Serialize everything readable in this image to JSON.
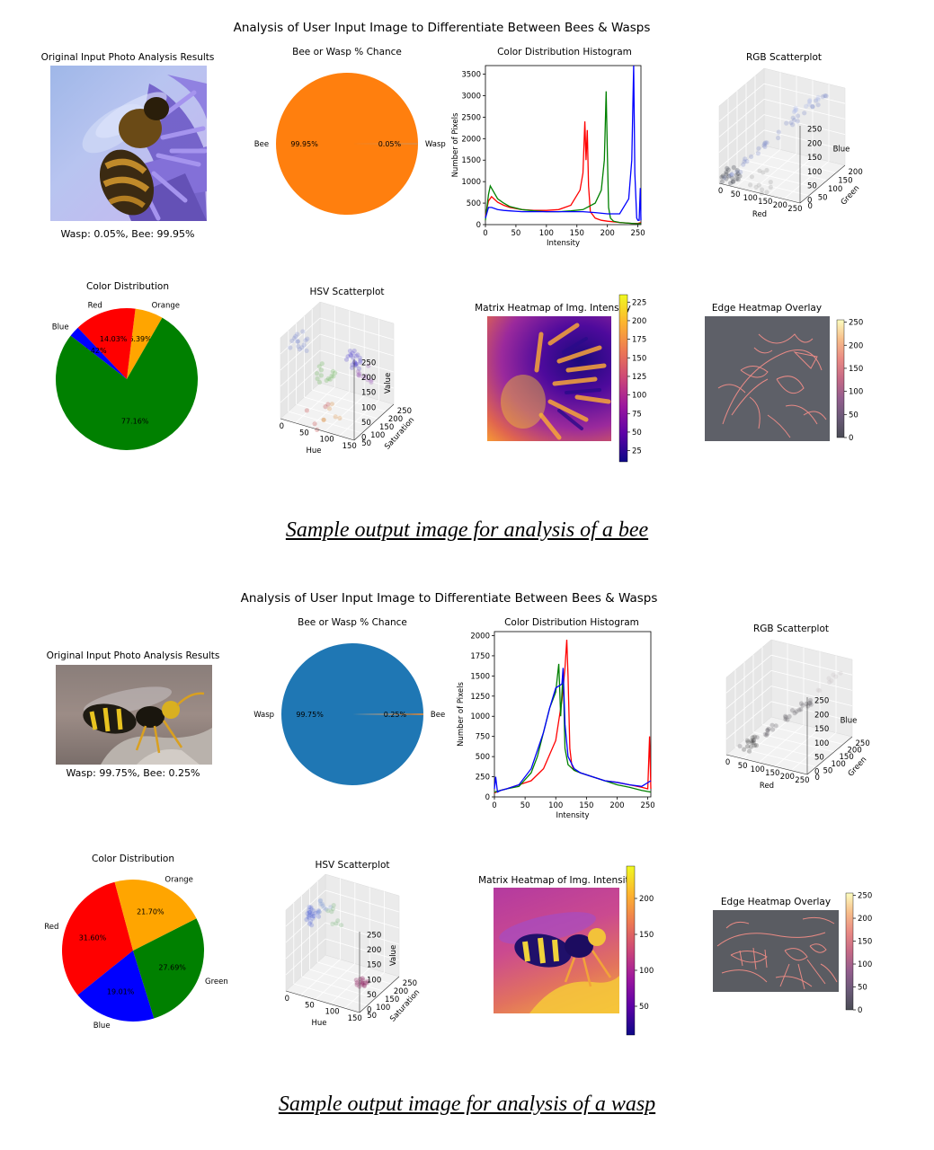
{
  "figures": [
    {
      "suptitle": "Analysis of User Input Image to Differentiate Between Bees & Wasps",
      "photo": {
        "title": "Original Input Photo Analysis Results",
        "result": "Wasp: 0.05%, Bee: 99.95%",
        "subject": "bee"
      },
      "caption": "Sample output image for analysis of a bee"
    },
    {
      "suptitle": "Analysis of User Input Image to Differentiate Between Bees & Wasps",
      "photo": {
        "title": "Original Input Photo Analysis Results",
        "result": "Wasp: 99.75%, Bee: 0.25%",
        "subject": "wasp"
      },
      "caption": "Sample output image for analysis of a wasp"
    }
  ],
  "chart_data": [
    {
      "type": "pie",
      "title": "Bee or Wasp % Chance",
      "labels": [
        "Bee",
        "Wasp"
      ],
      "values": [
        99.95,
        0.05
      ],
      "value_labels": [
        "99.95%",
        "0.05%"
      ],
      "colors": [
        "#ff7f0e",
        "#1f77b4"
      ]
    },
    {
      "type": "line",
      "title": "Color Distribution Histogram",
      "xlabel": "Intensity",
      "ylabel": "Number of Pixels",
      "xlim": [
        0,
        255
      ],
      "ylim": [
        0,
        3700
      ],
      "xticks": [
        0,
        50,
        100,
        150,
        200,
        250
      ],
      "yticks": [
        0,
        500,
        1000,
        1500,
        2000,
        2500,
        3000,
        3500
      ],
      "series": [
        {
          "color": "#ff0000",
          "x": [
            0,
            5,
            10,
            20,
            30,
            40,
            60,
            80,
            100,
            120,
            140,
            155,
            160,
            163,
            165,
            167,
            169,
            172,
            180,
            190,
            200,
            220,
            240,
            250,
            255
          ],
          "y": [
            200,
            550,
            650,
            520,
            450,
            400,
            350,
            330,
            330,
            350,
            450,
            800,
            1200,
            2400,
            1500,
            2200,
            900,
            300,
            150,
            100,
            80,
            50,
            30,
            30,
            50
          ]
        },
        {
          "color": "#008000",
          "x": [
            0,
            5,
            8,
            12,
            20,
            30,
            40,
            60,
            80,
            100,
            120,
            140,
            160,
            180,
            190,
            195,
            198,
            200,
            202,
            205,
            210,
            220,
            240,
            250,
            255
          ],
          "y": [
            100,
            700,
            900,
            800,
            600,
            500,
            420,
            350,
            320,
            300,
            300,
            320,
            350,
            500,
            800,
            1500,
            3100,
            1600,
            400,
            150,
            80,
            50,
            30,
            20,
            30
          ]
        },
        {
          "color": "#0000ff",
          "x": [
            0,
            5,
            10,
            20,
            30,
            40,
            60,
            80,
            100,
            120,
            140,
            160,
            180,
            200,
            220,
            235,
            240,
            243,
            245,
            248,
            250,
            252,
            254,
            255
          ],
          "y": [
            150,
            400,
            400,
            350,
            330,
            320,
            300,
            300,
            300,
            300,
            300,
            300,
            280,
            250,
            250,
            600,
            1500,
            3700,
            1200,
            150,
            100,
            100,
            850,
            100
          ]
        }
      ]
    },
    {
      "type": "scatter",
      "title": "RGB Scatterplot",
      "xlabel": "Red",
      "ylabel": "Green",
      "zlabel": "Blue",
      "xticks": [
        0,
        50,
        100,
        150,
        200,
        250
      ],
      "yticks": [
        0,
        50,
        100,
        150,
        200
      ],
      "zticks": [
        0,
        50,
        100,
        150,
        200,
        250
      ]
    },
    {
      "type": "pie",
      "title": "Color Distribution",
      "labels": [
        "Orange",
        "Red",
        "Blue",
        "Green"
      ],
      "values": [
        6.39,
        14.03,
        2.42,
        77.16
      ],
      "value_labels": [
        "6.39%",
        "14.03%",
        "2.42%",
        "77.16%"
      ],
      "colors": [
        "#ffa500",
        "#ff0000",
        "#0000ff",
        "#008000"
      ]
    },
    {
      "type": "scatter",
      "title": "HSV Scatterplot",
      "xlabel": "Hue",
      "ylabel": "Saturation",
      "zlabel": "Value",
      "xticks": [
        0,
        50,
        100,
        150
      ],
      "yticks": [
        50,
        100,
        150,
        200,
        250
      ],
      "zticks": [
        0,
        50,
        100,
        150,
        200,
        250
      ]
    },
    {
      "type": "heatmap",
      "title": "Matrix Heatmap of Img. Intensity",
      "colorbar_ticks": [
        25,
        50,
        75,
        100,
        125,
        150,
        175,
        200,
        225
      ],
      "colorbar_range": [
        10,
        235
      ]
    },
    {
      "type": "heatmap",
      "title": "Edge Heatmap Overlay",
      "colorbar_ticks": [
        0,
        50,
        100,
        150,
        200,
        250
      ],
      "colorbar_range": [
        0,
        255
      ]
    },
    {
      "type": "pie",
      "title": "Bee or Wasp % Chance",
      "labels": [
        "Wasp",
        "Bee"
      ],
      "values": [
        99.75,
        0.25
      ],
      "value_labels": [
        "99.75%",
        "0.25%"
      ],
      "colors": [
        "#1f77b4",
        "#ff7f0e"
      ]
    },
    {
      "type": "line",
      "title": "Color Distribution Histogram",
      "xlabel": "Intensity",
      "ylabel": "Number of Pixels",
      "xlim": [
        0,
        255
      ],
      "ylim": [
        0,
        2050
      ],
      "xticks": [
        0,
        50,
        100,
        150,
        200,
        250
      ],
      "yticks": [
        0,
        250,
        500,
        750,
        1000,
        1250,
        1500,
        1750,
        2000
      ],
      "series": [
        {
          "color": "#ff0000",
          "x": [
            0,
            10,
            20,
            40,
            60,
            80,
            100,
            110,
            115,
            118,
            120,
            123,
            126,
            130,
            140,
            160,
            180,
            200,
            220,
            240,
            250,
            253,
            255
          ],
          "y": [
            50,
            80,
            100,
            150,
            200,
            350,
            700,
            1200,
            1600,
            1950,
            1500,
            600,
            400,
            330,
            300,
            250,
            200,
            180,
            150,
            120,
            100,
            750,
            100
          ]
        },
        {
          "color": "#008000",
          "x": [
            0,
            10,
            20,
            40,
            60,
            70,
            80,
            90,
            100,
            105,
            108,
            112,
            115,
            120,
            130,
            140,
            160,
            180,
            200,
            220,
            240,
            255
          ],
          "y": [
            60,
            80,
            100,
            130,
            300,
            500,
            800,
            1100,
            1300,
            1650,
            1000,
            1550,
            600,
            400,
            330,
            300,
            250,
            200,
            150,
            120,
            80,
            60
          ]
        },
        {
          "color": "#0000ff",
          "x": [
            0,
            2,
            5,
            10,
            20,
            40,
            60,
            80,
            90,
            100,
            110,
            112,
            115,
            120,
            130,
            140,
            160,
            180,
            200,
            220,
            240,
            255
          ],
          "y": [
            100,
            250,
            60,
            80,
            100,
            150,
            350,
            800,
            1100,
            1350,
            1400,
            1600,
            900,
            500,
            350,
            300,
            250,
            200,
            180,
            150,
            130,
            200
          ]
        }
      ]
    },
    {
      "type": "scatter",
      "title": "RGB Scatterplot",
      "xlabel": "Red",
      "ylabel": "Green",
      "zlabel": "Blue",
      "xticks": [
        0,
        50,
        100,
        150,
        200,
        250
      ],
      "yticks": [
        0,
        50,
        100,
        150,
        200,
        250
      ],
      "zticks": [
        0,
        50,
        100,
        150,
        200,
        250
      ]
    },
    {
      "type": "pie",
      "title": "Color Distribution",
      "labels": [
        "Red",
        "Blue",
        "Green",
        "Orange"
      ],
      "values": [
        31.6,
        19.01,
        27.69,
        21.7
      ],
      "value_labels": [
        "31.60%",
        "19.01%",
        "27.69%",
        "21.70%"
      ],
      "colors": [
        "#ff0000",
        "#0000ff",
        "#008000",
        "#ffa500"
      ]
    },
    {
      "type": "scatter",
      "title": "HSV Scatterplot",
      "xlabel": "Hue",
      "ylabel": "Saturation",
      "zlabel": "Value",
      "xticks": [
        0,
        50,
        100,
        150
      ],
      "yticks": [
        50,
        100,
        150,
        200,
        250
      ],
      "zticks": [
        0,
        50,
        100,
        150,
        200,
        250
      ]
    },
    {
      "type": "heatmap",
      "title": "Matrix Heatmap of Img. Intensity",
      "colorbar_ticks": [
        50,
        100,
        150,
        200
      ],
      "colorbar_range": [
        10,
        245
      ]
    },
    {
      "type": "heatmap",
      "title": "Edge Heatmap Overlay",
      "colorbar_ticks": [
        0,
        50,
        100,
        150,
        200,
        250
      ],
      "colorbar_range": [
        0,
        255
      ]
    }
  ]
}
